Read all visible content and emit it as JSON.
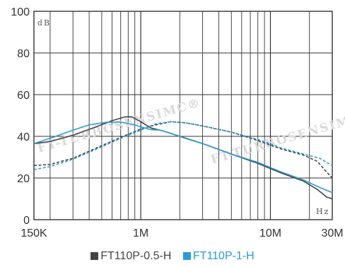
{
  "chart_data": {
    "type": "line",
    "xscale": "log",
    "xlim": [
      150000,
      30000000
    ],
    "ylim": [
      0,
      100
    ],
    "xticks": [
      {
        "value": 150000,
        "label": "150K"
      },
      {
        "value": 1000000,
        "label": "1M"
      },
      {
        "value": 10000000,
        "label": "10M"
      },
      {
        "value": 30000000,
        "label": "30M"
      }
    ],
    "yticks": [
      0,
      20,
      40,
      60,
      80,
      100
    ],
    "ylabel": "dB",
    "xlabel": "Hz",
    "grid": true,
    "legend_position": "bottom",
    "watermark": "FT-TURBOSENSIMC®",
    "series": [
      {
        "name": "FT110P-0.5-H",
        "color": "#444444",
        "traces": [
          {
            "dash": false,
            "points": [
              [
                150000,
                36.5
              ],
              [
                200000,
                37.5
              ],
              [
                300000,
                40.5
              ],
              [
                450000,
                44.5
              ],
              [
                600000,
                47.5
              ],
              [
                750000,
                49.3
              ],
              [
                850000,
                49.4
              ],
              [
                1000000,
                47
              ],
              [
                1200000,
                44
              ],
              [
                1500000,
                42.5
              ],
              [
                2000000,
                40
              ],
              [
                3000000,
                36.5
              ],
              [
                5000000,
                31.5
              ],
              [
                8000000,
                27
              ],
              [
                12000000,
                22.5
              ],
              [
                18000000,
                18.5
              ],
              [
                23000000,
                14.5
              ],
              [
                27000000,
                11
              ],
              [
                30000000,
                10
              ]
            ]
          },
          {
            "dash": true,
            "points": [
              [
                150000,
                26
              ],
              [
                200000,
                26.5
              ],
              [
                300000,
                29.5
              ],
              [
                500000,
                35.5
              ],
              [
                700000,
                39.5
              ],
              [
                1000000,
                43.5
              ],
              [
                1300000,
                45.5
              ],
              [
                1700000,
                47
              ],
              [
                2200000,
                46.5
              ],
              [
                3000000,
                45
              ],
              [
                5000000,
                42
              ],
              [
                8000000,
                38
              ],
              [
                12000000,
                34
              ],
              [
                18000000,
                31
              ],
              [
                23000000,
                28
              ],
              [
                27000000,
                23
              ],
              [
                30000000,
                20
              ]
            ]
          }
        ]
      },
      {
        "name": "FT110P-1-H",
        "color": "#2a9ad8",
        "traces": [
          {
            "dash": false,
            "points": [
              [
                150000,
                36.5
              ],
              [
                200000,
                39
              ],
              [
                300000,
                43
              ],
              [
                400000,
                45.5
              ],
              [
                550000,
                46.8
              ],
              [
                700000,
                46.8
              ],
              [
                900000,
                45.5
              ],
              [
                1000000,
                44.5
              ],
              [
                1200000,
                43.2
              ],
              [
                1400000,
                43
              ],
              [
                1700000,
                41.5
              ],
              [
                2200000,
                39
              ],
              [
                3000000,
                36.5
              ],
              [
                5000000,
                31.5
              ],
              [
                8000000,
                27.5
              ],
              [
                12000000,
                23
              ],
              [
                18000000,
                19
              ],
              [
                25000000,
                15
              ],
              [
                30000000,
                13
              ]
            ]
          },
          {
            "dash": true,
            "points": [
              [
                150000,
                24
              ],
              [
                200000,
                25.5
              ],
              [
                300000,
                29
              ],
              [
                500000,
                35
              ],
              [
                700000,
                39
              ],
              [
                1000000,
                43
              ],
              [
                1300000,
                46
              ],
              [
                1700000,
                47
              ],
              [
                2200000,
                46.5
              ],
              [
                3000000,
                45
              ],
              [
                5000000,
                42
              ],
              [
                8000000,
                38.5
              ],
              [
                12000000,
                34.5
              ],
              [
                18000000,
                31.5
              ],
              [
                24000000,
                29.5
              ],
              [
                28000000,
                27
              ],
              [
                30000000,
                26
              ]
            ]
          }
        ]
      }
    ]
  }
}
